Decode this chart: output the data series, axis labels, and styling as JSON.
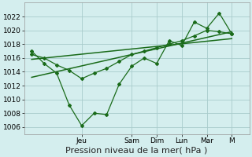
{
  "background_color": "#d4eeee",
  "grid_color": "#a8cccc",
  "line_color": "#1a6b1a",
  "ylim": [
    1005,
    1024
  ],
  "yticks": [
    1006,
    1008,
    1010,
    1012,
    1014,
    1016,
    1018,
    1020,
    1022
  ],
  "xlabel": "Pression niveau de la mer( hPa )",
  "xlabel_fontsize": 8,
  "tick_fontsize": 6.5,
  "day_labels": [
    "Jeu",
    "Sam",
    "Dim",
    "Lun",
    "Mar",
    "M"
  ],
  "day_positions": [
    2,
    4,
    5,
    6,
    7,
    8
  ],
  "xlim": [
    -0.3,
    8.7
  ],
  "series1_x": [
    0,
    0.5,
    1,
    1.5,
    2,
    2.5,
    3,
    3.5,
    4,
    4.5,
    5,
    5.5,
    6,
    6.5,
    7,
    7.5,
    8
  ],
  "series1_y": [
    1017.0,
    1015.2,
    1013.8,
    1009.2,
    1006.2,
    1008.0,
    1007.8,
    1012.2,
    1014.8,
    1016.0,
    1015.2,
    1018.5,
    1017.8,
    1021.2,
    1020.3,
    1022.5,
    1019.5
  ],
  "series2_x": [
    0,
    0.5,
    1,
    1.5,
    2,
    2.5,
    3,
    3.5,
    4,
    4.5,
    5,
    5.5,
    6,
    6.5,
    7,
    7.5,
    8
  ],
  "series2_y": [
    1016.5,
    1016.0,
    1015.0,
    1014.2,
    1013.0,
    1013.8,
    1014.5,
    1015.5,
    1016.5,
    1017.0,
    1017.5,
    1018.0,
    1018.5,
    1019.2,
    1020.0,
    1019.8,
    1019.5
  ],
  "trend1_x": [
    0,
    8
  ],
  "trend1_y": [
    1013.2,
    1019.8
  ],
  "trend2_x": [
    0,
    8
  ],
  "trend2_y": [
    1015.8,
    1018.8
  ]
}
